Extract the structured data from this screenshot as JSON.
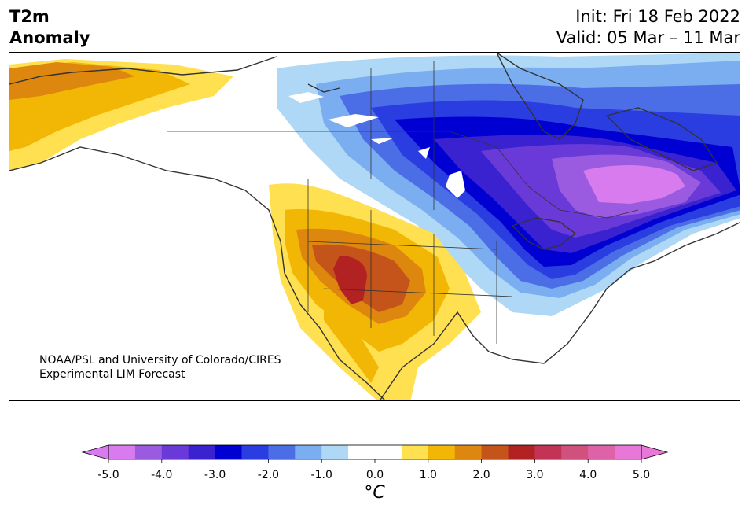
{
  "header": {
    "title_line1": "T2m",
    "title_line2": "Anomaly",
    "init_label": "Init: Fri 18 Feb 2022",
    "valid_label": "Valid: 05 Mar – 11 Mar"
  },
  "map": {
    "region": "North America",
    "credit_line1": "NOAA/PSL and University of Colorado/CIRES",
    "credit_line2": "Experimental LIM Forecast",
    "colors": {
      "cold_max": "#dd6ee6",
      "purple": "#6a3ad8",
      "deep_blue": "#0000d2",
      "blue": "#2a3de0",
      "mid_blue": "#4b6ee6",
      "light_blue": "#7aaef0",
      "pale_blue": "#aed8f6",
      "neutral": "#ffffff",
      "pale_yellow": "#ffe050",
      "yellow": "#f2b705",
      "orange": "#de870f",
      "dark_orange": "#c5541a",
      "red": "#b22222",
      "coast": "#333333",
      "land_border": "#333333"
    }
  },
  "colorbar": {
    "bins": [
      "#d77bee",
      "#9a5be0",
      "#6a3ad8",
      "#3a22d0",
      "#0000d2",
      "#2a3de0",
      "#4b6ee6",
      "#7aaef0",
      "#aed8f6",
      "#ffffff",
      "#ffffff",
      "#ffe050",
      "#f2b705",
      "#de870f",
      "#c5541a",
      "#b22222",
      "#c23355",
      "#d0507e",
      "#de62a8",
      "#e878d8"
    ],
    "under_color": "#d77bee",
    "over_color": "#e878d8",
    "ticks": [
      "-5.0",
      "-4.0",
      "-3.0",
      "-2.0",
      "-1.0",
      "0.0",
      "1.0",
      "2.0",
      "3.0",
      "4.0",
      "5.0"
    ],
    "units": "°C"
  }
}
